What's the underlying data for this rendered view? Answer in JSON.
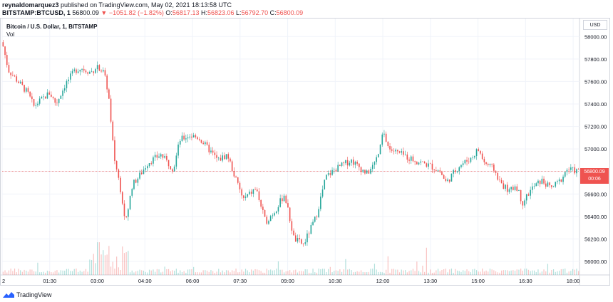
{
  "header": {
    "line1_user": "reynaldomarquez3",
    "line1_rest": " published on TradingView.com, May 02, 2021 18:13:58 UTC",
    "symbol": "BITSTAMP:BTCUSD, 1",
    "price": "56800.09",
    "change": "▼ −1051.82 (−1.82%)",
    "o_label": "O:",
    "o_val": "56817.13",
    "h_label": "H:",
    "h_val": "56823.06",
    "l_label": "L:",
    "l_val": "56792.70",
    "c_label": "C:",
    "c_val": "56800.09"
  },
  "legend": {
    "name": "Bitcoin / U.S. Dollar, 1, BITSTAMP",
    "vol": "Vol"
  },
  "price_axis": {
    "currency": "USD",
    "last_price": "56800.09",
    "countdown": "00:06"
  },
  "footer": {
    "brand": "TradingView"
  },
  "colors": {
    "up": "#26a69a",
    "down": "#ef5350",
    "grid": "#f0f3fa"
  },
  "chart_data": {
    "type": "candlestick",
    "title": "Bitcoin / U.S. Dollar, 1, BITSTAMP",
    "ylim": [
      55880,
      58160
    ],
    "y_ticks": [
      56000,
      56200,
      56400,
      56600,
      56800,
      57000,
      57200,
      57400,
      57600,
      57800,
      58000
    ],
    "x_tick_labels": [
      "2",
      "01:30",
      "03:00",
      "04:30",
      "06:00",
      "07:30",
      "09:00",
      "10:30",
      "12:00",
      "13:30",
      "15:00",
      "16:30",
      "18:00"
    ],
    "x_tick_hours": [
      0,
      1.5,
      3,
      4.5,
      6,
      7.5,
      9,
      10.5,
      12,
      13.5,
      15,
      16.5,
      18
    ],
    "x_range_hours": [
      0,
      18.2
    ],
    "grid": true,
    "last_price": 56800.09,
    "price_path": [
      [
        0.0,
        57950
      ],
      [
        0.2,
        57700
      ],
      [
        0.5,
        57600
      ],
      [
        0.8,
        57500
      ],
      [
        1.0,
        57380
      ],
      [
        1.2,
        57430
      ],
      [
        1.5,
        57500
      ],
      [
        1.7,
        57400
      ],
      [
        2.0,
        57580
      ],
      [
        2.3,
        57700
      ],
      [
        2.5,
        57720
      ],
      [
        2.8,
        57680
      ],
      [
        3.0,
        57740
      ],
      [
        3.2,
        57680
      ],
      [
        3.35,
        57500
      ],
      [
        3.45,
        57150
      ],
      [
        3.55,
        56900
      ],
      [
        3.7,
        56700
      ],
      [
        3.9,
        56350
      ],
      [
        4.1,
        56680
      ],
      [
        4.3,
        56750
      ],
      [
        4.6,
        56880
      ],
      [
        5.0,
        56950
      ],
      [
        5.4,
        56820
      ],
      [
        5.6,
        57080
      ],
      [
        5.9,
        57120
      ],
      [
        6.2,
        57100
      ],
      [
        6.5,
        57000
      ],
      [
        6.8,
        56900
      ],
      [
        7.1,
        56950
      ],
      [
        7.3,
        56780
      ],
      [
        7.6,
        56550
      ],
      [
        8.0,
        56650
      ],
      [
        8.3,
        56350
      ],
      [
        8.6,
        56450
      ],
      [
        8.9,
        56600
      ],
      [
        9.2,
        56200
      ],
      [
        9.5,
        56150
      ],
      [
        9.9,
        56400
      ],
      [
        10.2,
        56750
      ],
      [
        10.5,
        56820
      ],
      [
        11.0,
        56900
      ],
      [
        11.5,
        56780
      ],
      [
        11.7,
        56850
      ],
      [
        11.9,
        56980
      ],
      [
        12.0,
        57150
      ],
      [
        12.2,
        57000
      ],
      [
        12.6,
        56950
      ],
      [
        13.0,
        56900
      ],
      [
        13.5,
        56850
      ],
      [
        13.8,
        56800
      ],
      [
        14.0,
        56700
      ],
      [
        14.4,
        56850
      ],
      [
        14.8,
        56920
      ],
      [
        15.0,
        57000
      ],
      [
        15.2,
        56880
      ],
      [
        15.5,
        56820
      ],
      [
        15.7,
        56700
      ],
      [
        16.0,
        56620
      ],
      [
        16.2,
        56680
      ],
      [
        16.4,
        56520
      ],
      [
        16.7,
        56650
      ],
      [
        17.0,
        56720
      ],
      [
        17.3,
        56650
      ],
      [
        17.6,
        56720
      ],
      [
        17.8,
        56820
      ],
      [
        18.2,
        56800
      ]
    ]
  }
}
